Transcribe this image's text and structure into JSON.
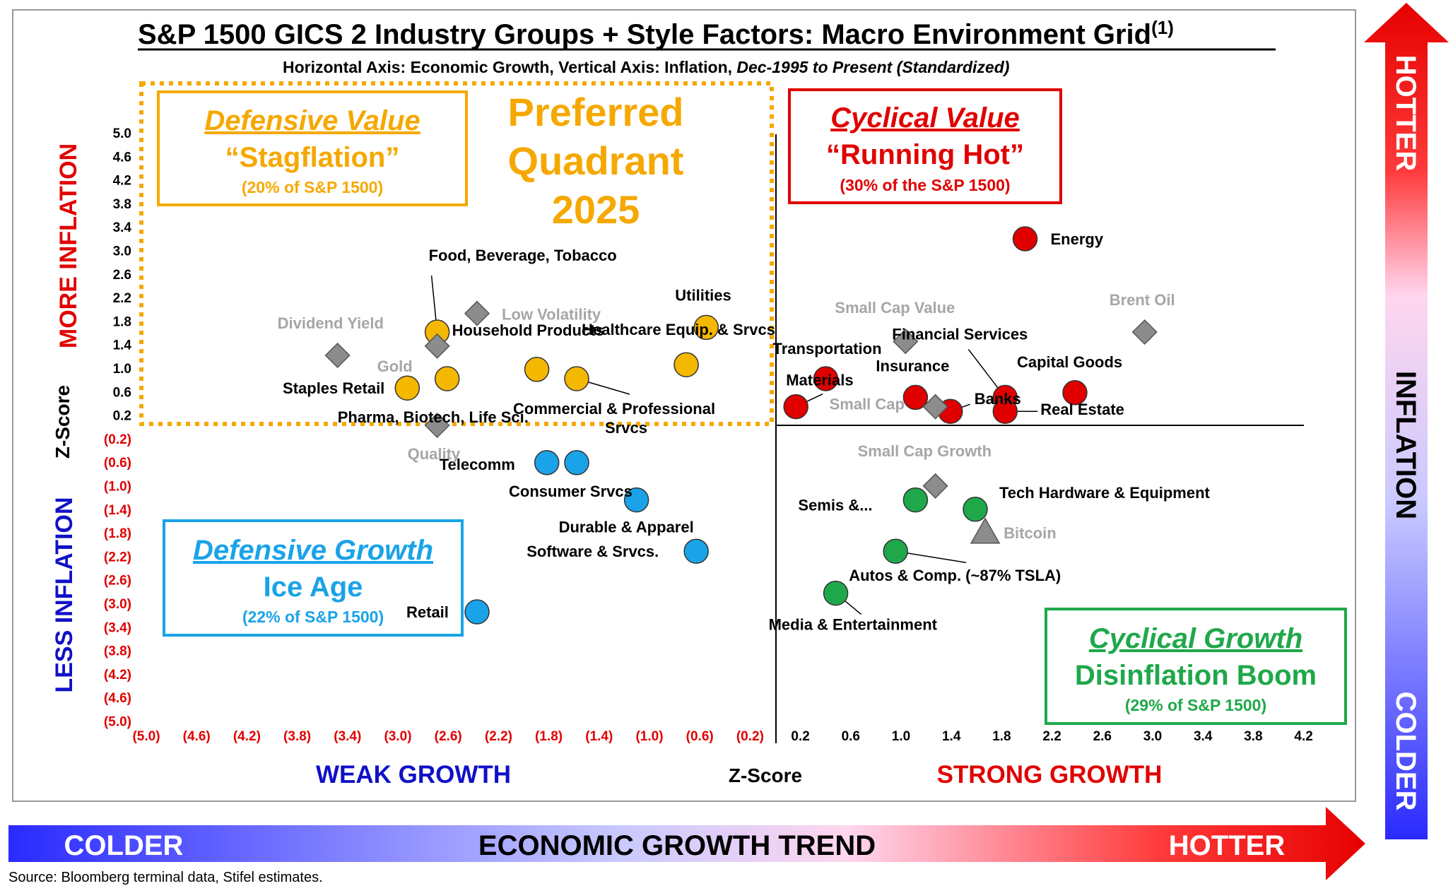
{
  "chart_data": {
    "type": "scatter",
    "title": "S&P 1500 GICS 2 Industry Groups + Style Factors: Macro Environment Grid",
    "title_sup": "(1)",
    "subtitle_plain": "Horizontal Axis: Economic Growth, Vertical Axis: Inflation,",
    "subtitle_italic": "Dec-1995 to Present (Standardized)",
    "xlabel": "Z-Score",
    "ylabel": "Z-Score",
    "xlim": [
      -5.2,
      4.6
    ],
    "ylim": [
      -5.0,
      5.0
    ],
    "grid": false,
    "x_ticks": [
      "(5.0)",
      "(4.6)",
      "(4.2)",
      "(3.8)",
      "(3.4)",
      "(3.0)",
      "(2.6)",
      "(2.2)",
      "(1.8)",
      "(1.4)",
      "(1.0)",
      "(0.6)",
      "(0.2)",
      "0.2",
      "0.6",
      "1.0",
      "1.4",
      "1.8",
      "2.2",
      "2.6",
      "3.0",
      "3.4",
      "3.8",
      "4.2"
    ],
    "y_ticks": [
      "5.0",
      "4.6",
      "4.2",
      "3.8",
      "3.4",
      "3.0",
      "2.6",
      "2.2",
      "1.8",
      "1.4",
      "1.0",
      "0.6",
      "0.2",
      "(0.2)",
      "(0.6)",
      "(1.0)",
      "(1.4)",
      "(1.8)",
      "(2.2)",
      "(2.6)",
      "(3.0)",
      "(3.4)",
      "(3.8)",
      "(4.2)",
      "(4.6)",
      "(5.0)"
    ],
    "series": [
      {
        "name": "Defensive Value",
        "color": "#F5B800",
        "marker": "circle",
        "points": [
          {
            "label": "Food, Beverage, Tobacco",
            "x": -3.4,
            "y": 2.0
          },
          {
            "label": "Staples Retail",
            "x": -3.7,
            "y": 0.8
          },
          {
            "label": "Pharma, Biotech, Life Sci.",
            "x": -3.3,
            "y": 1.0
          },
          {
            "label": "Household Products",
            "x": -2.4,
            "y": 1.2
          },
          {
            "label": "Commercial & Professional Srvcs",
            "x": -2.0,
            "y": 1.0
          },
          {
            "label": "Healthcare Equip. & Srvcs",
            "x": -0.9,
            "y": 1.3
          },
          {
            "label": "Utilities",
            "x": -0.7,
            "y": 2.1
          }
        ]
      },
      {
        "name": "Cyclical Value",
        "color": "#E00000",
        "marker": "circle",
        "points": [
          {
            "label": "Energy",
            "x": 2.5,
            "y": 4.0
          },
          {
            "label": "Transportation",
            "x": 0.5,
            "y": 1.0
          },
          {
            "label": "Materials",
            "x": 0.2,
            "y": 0.4
          },
          {
            "label": "Insurance",
            "x": 1.4,
            "y": 0.6
          },
          {
            "label": "Financial Services",
            "x": 2.3,
            "y": 0.6
          },
          {
            "label": "Capital Goods",
            "x": 3.0,
            "y": 0.7
          },
          {
            "label": "Banks",
            "x": 1.75,
            "y": 0.3
          },
          {
            "label": "Real Estate",
            "x": 2.3,
            "y": 0.3
          }
        ]
      },
      {
        "name": "Defensive Growth",
        "color": "#1AA3E8",
        "marker": "circle",
        "points": [
          {
            "label": "Telecomm",
            "x": -2.3,
            "y": -0.8
          },
          {
            "label": "Consumer Srvcs",
            "x": -2.0,
            "y": -0.8
          },
          {
            "label": "Durable & Apparel",
            "x": -1.4,
            "y": -1.6
          },
          {
            "label": "Software & Srvcs.",
            "x": -0.8,
            "y": -2.7
          },
          {
            "label": "Retail",
            "x": -3.0,
            "y": -4.0
          }
        ]
      },
      {
        "name": "Cyclical Growth",
        "color": "#1FA84A",
        "marker": "circle",
        "points": [
          {
            "label": "Semis &...",
            "x": 1.4,
            "y": -1.6
          },
          {
            "label": "Tech Hardware & Equipment",
            "x": 2.0,
            "y": -1.8
          },
          {
            "label": "Autos & Comp. (~87% TSLA)",
            "x": 1.2,
            "y": -2.7
          },
          {
            "label": "Media & Entertainment",
            "x": 0.6,
            "y": -3.6
          }
        ]
      },
      {
        "name": "Style Factors",
        "color": "#8C8C8C",
        "marker": "diamond",
        "points": [
          {
            "label": "Dividend Yield",
            "x": -4.4,
            "y": 1.5
          },
          {
            "label": "Low Volatility",
            "x": -3.0,
            "y": 2.4
          },
          {
            "label": "Gold",
            "x": -3.4,
            "y": 1.7
          },
          {
            "label": "Quality",
            "x": -3.4,
            "y": 0.0
          },
          {
            "label": "Small Cap Value",
            "x": 1.3,
            "y": 1.8
          },
          {
            "label": "Brent Oil",
            "x": 3.7,
            "y": 2.0
          },
          {
            "label": "Small Cap",
            "x": 1.6,
            "y": 0.4
          },
          {
            "label": "Small Cap Growth",
            "x": 1.6,
            "y": -1.3
          }
        ]
      },
      {
        "name": "Bitcoin",
        "color": "#8C8C8C",
        "marker": "triangle",
        "points": [
          {
            "label": "Bitcoin",
            "x": 2.1,
            "y": -2.3
          }
        ]
      }
    ]
  },
  "quadrants": {
    "defensive_value": {
      "title": "Defensive Value",
      "nickname": "“Stagflation”",
      "share": "(20% of S&P 1500)",
      "color": "#F5A800"
    },
    "cyclical_value": {
      "title": "Cyclical Value",
      "nickname": "“Running Hot”",
      "share": "(30% of the S&P 1500)",
      "color": "#E00000"
    },
    "defensive_growth": {
      "title": "Defensive Growth",
      "nickname": "Ice Age",
      "share": "(22% of S&P 1500)",
      "color": "#1AA3E8"
    },
    "cyclical_growth": {
      "title": "Cyclical Growth",
      "nickname": "Disinflation Boom",
      "share": "(29% of S&P 1500)",
      "color": "#1FA84A"
    }
  },
  "preferred": {
    "line1": "Preferred",
    "line2": "Quadrant",
    "line3": "2025",
    "color": "#F5A800"
  },
  "axis_titles": {
    "more_inflation": "MORE INFLATION",
    "less_inflation": "LESS INFLATION",
    "weak_growth": "WEAK GROWTH",
    "strong_growth": "STRONG GROWTH"
  },
  "bottom_arrow": {
    "left": "COLDER",
    "center": "ECONOMIC GROWTH TREND",
    "right": "HOTTER"
  },
  "right_arrow": {
    "top": "HOTTER",
    "center": "INFLATION",
    "bottom": "COLDER"
  },
  "source": "Source: Bloomberg terminal data, Stifel estimates."
}
